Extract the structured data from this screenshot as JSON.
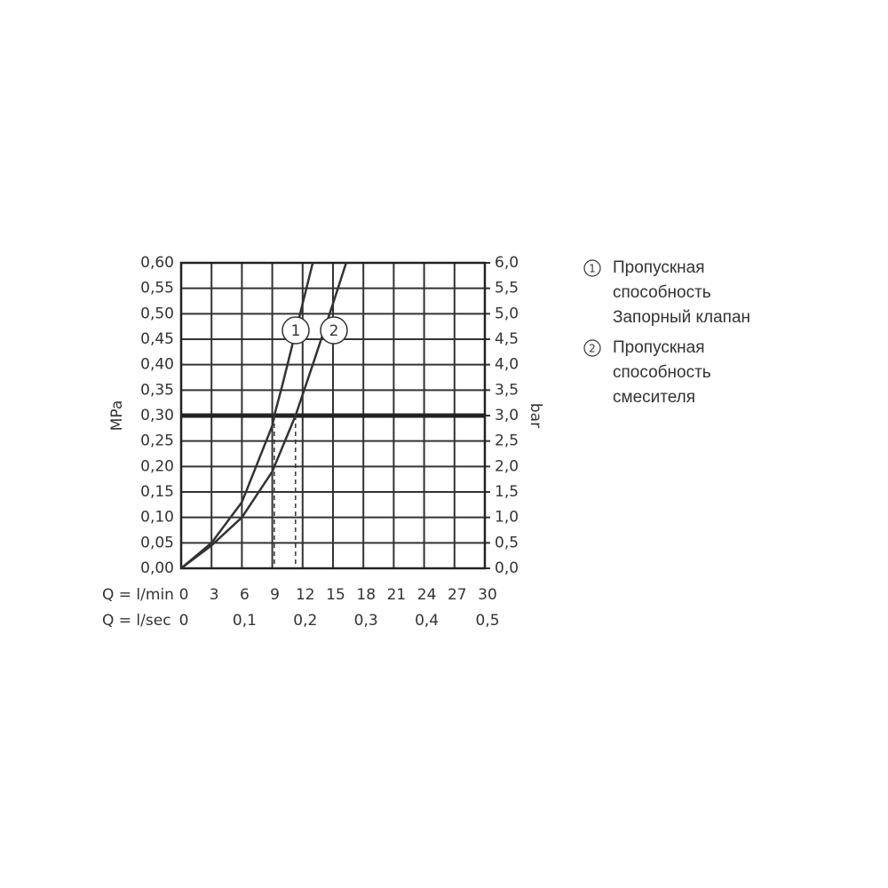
{
  "chart_data": {
    "type": "line",
    "ylabel": "MPa",
    "y2label": "bar",
    "xlabel": "Q = l/min",
    "x2label": "Q = l/sec",
    "xlim": [
      0,
      30
    ],
    "xticks": [
      0,
      3,
      6,
      9,
      12,
      15,
      18,
      21,
      24,
      27,
      30
    ],
    "x2lim": [
      0,
      0.5
    ],
    "x2ticks": [
      0,
      {
        "value": 0.1,
        "label": "0,1"
      },
      {
        "value": 0.2,
        "label": "0,2"
      },
      {
        "value": 0.3,
        "label": "0,3"
      },
      {
        "value": 0.4,
        "label": "0,4"
      },
      {
        "value": 0.5,
        "label": "0,5"
      }
    ],
    "ylim": [
      0,
      0.6
    ],
    "yticks": [
      {
        "value": 0,
        "label": "0,00"
      },
      {
        "value": 0.05,
        "label": "0,05"
      },
      {
        "value": 0.1,
        "label": "0,10"
      },
      {
        "value": 0.15,
        "label": "0,15"
      },
      {
        "value": 0.2,
        "label": "0,20"
      },
      {
        "value": 0.25,
        "label": "0,25"
      },
      {
        "value": 0.3,
        "label": "0,30"
      },
      {
        "value": 0.35,
        "label": "0,35"
      },
      {
        "value": 0.4,
        "label": "0,40"
      },
      {
        "value": 0.45,
        "label": "0,45"
      },
      {
        "value": 0.5,
        "label": "0,50"
      },
      {
        "value": 0.55,
        "label": "0,55"
      },
      {
        "value": 0.6,
        "label": "0,60"
      }
    ],
    "y2lim": [
      0,
      6
    ],
    "y2ticks": [
      {
        "value": 0,
        "label": "0,0"
      },
      {
        "value": 0.5,
        "label": "0,5"
      },
      {
        "value": 1,
        "label": "1,0"
      },
      {
        "value": 1.5,
        "label": "1,5"
      },
      {
        "value": 2,
        "label": "2,0"
      },
      {
        "value": 2.5,
        "label": "2,5"
      },
      {
        "value": 3,
        "label": "3,0"
      },
      {
        "value": 3.5,
        "label": "3,5"
      },
      {
        "value": 4,
        "label": "4,0"
      },
      {
        "value": 4.5,
        "label": "4,5"
      },
      {
        "value": 5,
        "label": "5,0"
      },
      {
        "value": 5.5,
        "label": "5,5"
      },
      {
        "value": 6,
        "label": "6,0"
      }
    ],
    "grid": true,
    "reference": {
      "y": 0.3,
      "x": [
        9.2,
        11.3
      ]
    },
    "series": [
      {
        "name": "1",
        "color": "#333333",
        "legend_lines": [
          "Пропускная",
          "способность",
          "Запорный клапан"
        ],
        "x": [
          0,
          3,
          6,
          9,
          9.2,
          10,
          11,
          12,
          13
        ],
        "values": [
          0,
          0.05,
          0.13,
          0.28,
          0.3,
          0.36,
          0.44,
          0.52,
          0.6
        ]
      },
      {
        "name": "2",
        "color": "#333333",
        "legend_lines": [
          "Пропускная",
          "способность",
          "смесителя"
        ],
        "x": [
          0,
          3,
          6,
          9,
          11.3,
          13,
          15,
          16.3
        ],
        "values": [
          0,
          0.045,
          0.1,
          0.19,
          0.3,
          0.4,
          0.52,
          0.6
        ]
      }
    ]
  }
}
